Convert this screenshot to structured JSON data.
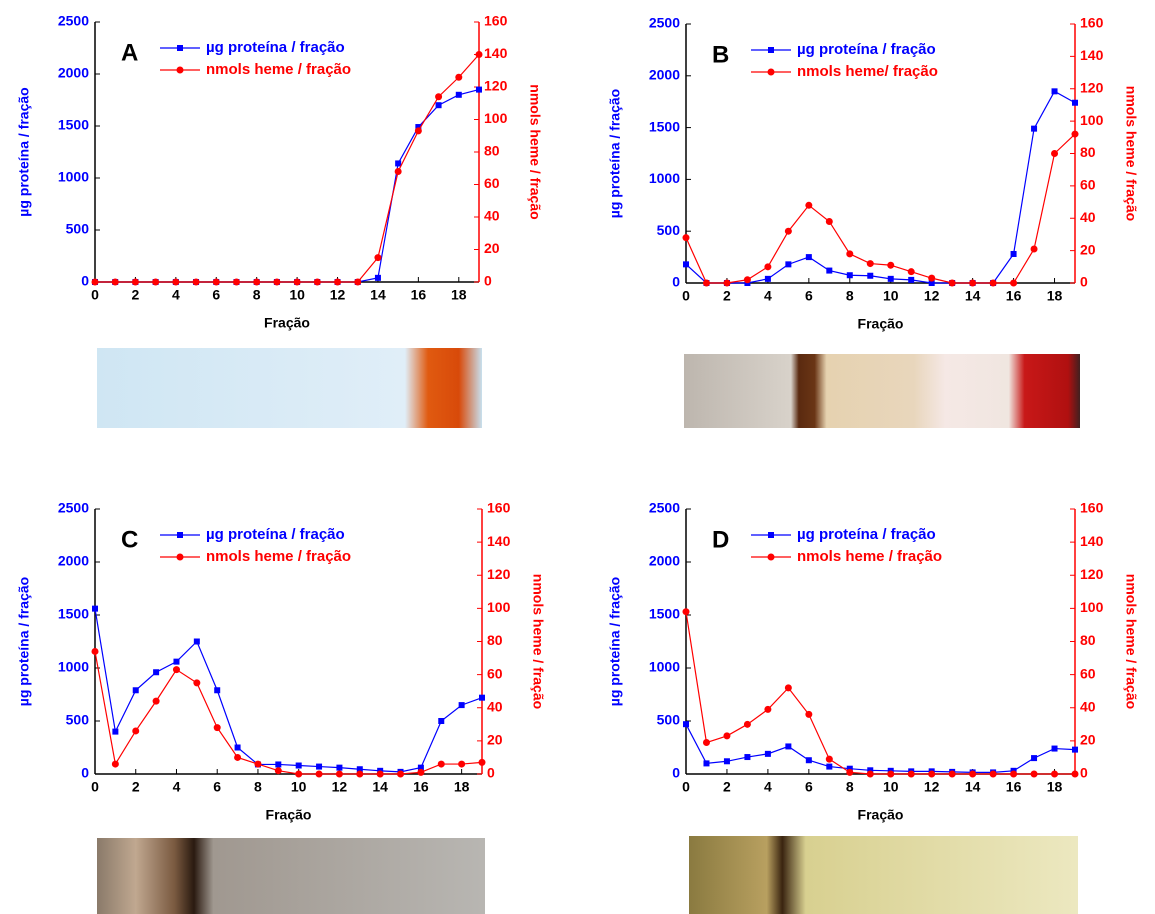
{
  "chart_data": [
    {
      "type": "line",
      "title": "A",
      "xlabel": "Fração",
      "ylabel": "µg proteína / fração",
      "y2label": "nmols heme / fração",
      "x": [
        0,
        1,
        2,
        3,
        4,
        5,
        6,
        7,
        8,
        9,
        10,
        11,
        12,
        13,
        14,
        15,
        16,
        17,
        18,
        19
      ],
      "xlim": [
        0,
        19
      ],
      "xticks": [
        0,
        2,
        4,
        6,
        8,
        10,
        12,
        14,
        16,
        18
      ],
      "ylim": [
        0,
        2500
      ],
      "yticks": [
        0,
        500,
        1000,
        1500,
        2000,
        2500
      ],
      "y2lim": [
        0,
        160
      ],
      "y2ticks": [
        0,
        20,
        40,
        60,
        80,
        100,
        120,
        140,
        160
      ],
      "legend": "upper left",
      "series": [
        {
          "name": "µg proteína / fração",
          "color": "#0000ff",
          "marker": "square",
          "values": [
            0,
            0,
            0,
            0,
            0,
            0,
            0,
            0,
            0,
            0,
            0,
            0,
            0,
            0,
            40,
            1140,
            1490,
            1700,
            1800,
            1850
          ]
        },
        {
          "name": "nmols heme / fração",
          "color": "#ff0000",
          "marker": "circle",
          "axis": "y2",
          "values": [
            0,
            0,
            0,
            0,
            0,
            0,
            0,
            0,
            0,
            0,
            0,
            0,
            0,
            0,
            15,
            68,
            93,
            114,
            126,
            140
          ]
        }
      ]
    },
    {
      "type": "line",
      "title": "B",
      "xlabel": "Fração",
      "ylabel": "µg proteína / fração",
      "y2label": "nmols heme / fração",
      "x": [
        0,
        1,
        2,
        3,
        4,
        5,
        6,
        7,
        8,
        9,
        10,
        11,
        12,
        13,
        14,
        15,
        16,
        17,
        18,
        19
      ],
      "xlim": [
        0,
        19
      ],
      "xticks": [
        0,
        2,
        4,
        6,
        8,
        10,
        12,
        14,
        16,
        18
      ],
      "ylim": [
        0,
        2500
      ],
      "yticks": [
        0,
        500,
        1000,
        1500,
        2000,
        2500
      ],
      "y2lim": [
        0,
        160
      ],
      "y2ticks": [
        0,
        20,
        40,
        60,
        80,
        100,
        120,
        140,
        160
      ],
      "legend": "upper left",
      "series": [
        {
          "name": "µg proteína / fração",
          "color": "#0000ff",
          "marker": "square",
          "values": [
            180,
            0,
            0,
            0,
            40,
            180,
            250,
            120,
            75,
            70,
            40,
            30,
            0,
            0,
            0,
            0,
            280,
            1490,
            1850,
            1740
          ]
        },
        {
          "name": "nmols heme/ fração",
          "color": "#ff0000",
          "marker": "circle",
          "axis": "y2",
          "values": [
            28,
            0,
            0,
            2,
            10,
            32,
            48,
            38,
            18,
            12,
            11,
            7,
            3,
            0,
            0,
            0,
            0,
            21,
            80,
            92
          ]
        }
      ]
    },
    {
      "type": "line",
      "title": "C",
      "xlabel": "Fração",
      "ylabel": "µg proteína / fração",
      "y2label": "nmols heme / fração",
      "x": [
        0,
        1,
        2,
        3,
        4,
        5,
        6,
        7,
        8,
        9,
        10,
        11,
        12,
        13,
        14,
        15,
        16,
        17,
        18,
        19
      ],
      "xlim": [
        0,
        19
      ],
      "xticks": [
        0,
        2,
        4,
        6,
        8,
        10,
        12,
        14,
        16,
        18
      ],
      "ylim": [
        0,
        2500
      ],
      "yticks": [
        0,
        500,
        1000,
        1500,
        2000,
        2500
      ],
      "y2lim": [
        0,
        160
      ],
      "y2ticks": [
        0,
        20,
        40,
        60,
        80,
        100,
        120,
        140,
        160
      ],
      "legend": "upper left",
      "series": [
        {
          "name": "µg proteína / fração",
          "color": "#0000ff",
          "marker": "square",
          "values": [
            1560,
            400,
            790,
            960,
            1060,
            1250,
            790,
            250,
            90,
            90,
            80,
            70,
            60,
            45,
            30,
            20,
            60,
            500,
            650,
            720
          ]
        },
        {
          "name": "nmols heme / fração",
          "color": "#ff0000",
          "marker": "circle",
          "axis": "y2",
          "values": [
            74,
            6,
            26,
            44,
            63,
            55,
            28,
            10,
            6,
            2,
            0,
            0,
            0,
            0,
            0,
            0,
            1,
            6,
            6,
            7
          ]
        }
      ]
    },
    {
      "type": "line",
      "title": "D",
      "xlabel": "Fração",
      "ylabel": "µg proteína / fração",
      "y2label": "nmols heme / fração",
      "x": [
        0,
        1,
        2,
        3,
        4,
        5,
        6,
        7,
        8,
        9,
        10,
        11,
        12,
        13,
        14,
        15,
        16,
        17,
        18,
        19
      ],
      "xlim": [
        0,
        19
      ],
      "xticks": [
        0,
        2,
        4,
        6,
        8,
        10,
        12,
        14,
        16,
        18
      ],
      "ylim": [
        0,
        2500
      ],
      "yticks": [
        0,
        500,
        1000,
        1500,
        2000,
        2500
      ],
      "y2lim": [
        0,
        160
      ],
      "y2ticks": [
        0,
        20,
        40,
        60,
        80,
        100,
        120,
        140,
        160
      ],
      "legend": "upper left",
      "series": [
        {
          "name": "µg proteína / fração",
          "color": "#0000ff",
          "marker": "square",
          "values": [
            470,
            100,
            120,
            160,
            190,
            260,
            130,
            70,
            50,
            35,
            30,
            25,
            25,
            20,
            15,
            15,
            30,
            150,
            240,
            230
          ]
        },
        {
          "name": "nmols heme / fração",
          "color": "#ff0000",
          "marker": "circle",
          "axis": "y2",
          "values": [
            98,
            19,
            23,
            30,
            39,
            52,
            36,
            9,
            1,
            0,
            0,
            0,
            0,
            0,
            0,
            0,
            0,
            0,
            0,
            0
          ]
        }
      ]
    }
  ]
}
